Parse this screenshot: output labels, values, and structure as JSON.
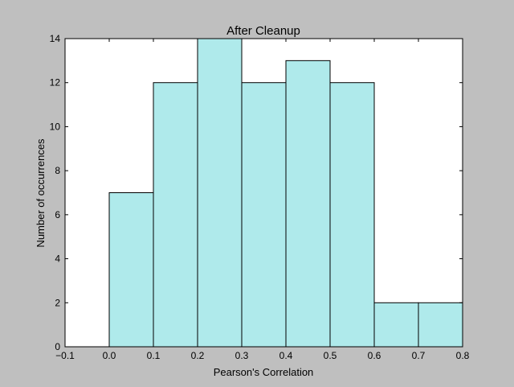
{
  "chart_data": {
    "type": "bar",
    "title": "After Cleanup",
    "xlabel": "Pearson's Correlation",
    "ylabel": "Number of occurrences",
    "xlim": [
      -0.1,
      0.8
    ],
    "ylim": [
      0,
      14
    ],
    "xticks": [
      -0.1,
      0.0,
      0.1,
      0.2,
      0.3,
      0.4,
      0.5,
      0.6,
      0.7,
      0.8
    ],
    "xtick_labels": [
      "−0.1",
      "0.0",
      "0.1",
      "0.2",
      "0.3",
      "0.4",
      "0.5",
      "0.6",
      "0.7",
      "0.8"
    ],
    "yticks": [
      0,
      2,
      4,
      6,
      8,
      10,
      12,
      14
    ],
    "ytick_labels": [
      "0",
      "2",
      "4",
      "6",
      "8",
      "10",
      "12",
      "14"
    ],
    "bins": [
      {
        "x0": 0.0,
        "x1": 0.1,
        "value": 7
      },
      {
        "x0": 0.1,
        "x1": 0.2,
        "value": 12
      },
      {
        "x0": 0.2,
        "x1": 0.3,
        "value": 14
      },
      {
        "x0": 0.3,
        "x1": 0.4,
        "value": 12
      },
      {
        "x0": 0.4,
        "x1": 0.5,
        "value": 13
      },
      {
        "x0": 0.5,
        "x1": 0.6,
        "value": 12
      },
      {
        "x0": 0.6,
        "x1": 0.7,
        "value": 2
      },
      {
        "x0": 0.7,
        "x1": 0.8,
        "value": 2
      }
    ],
    "grid": false,
    "colors": {
      "bar_fill": "#afeaeb",
      "bar_edge": "#000000",
      "figure_background": "#bfbfbf",
      "plot_background": "#ffffff"
    }
  }
}
